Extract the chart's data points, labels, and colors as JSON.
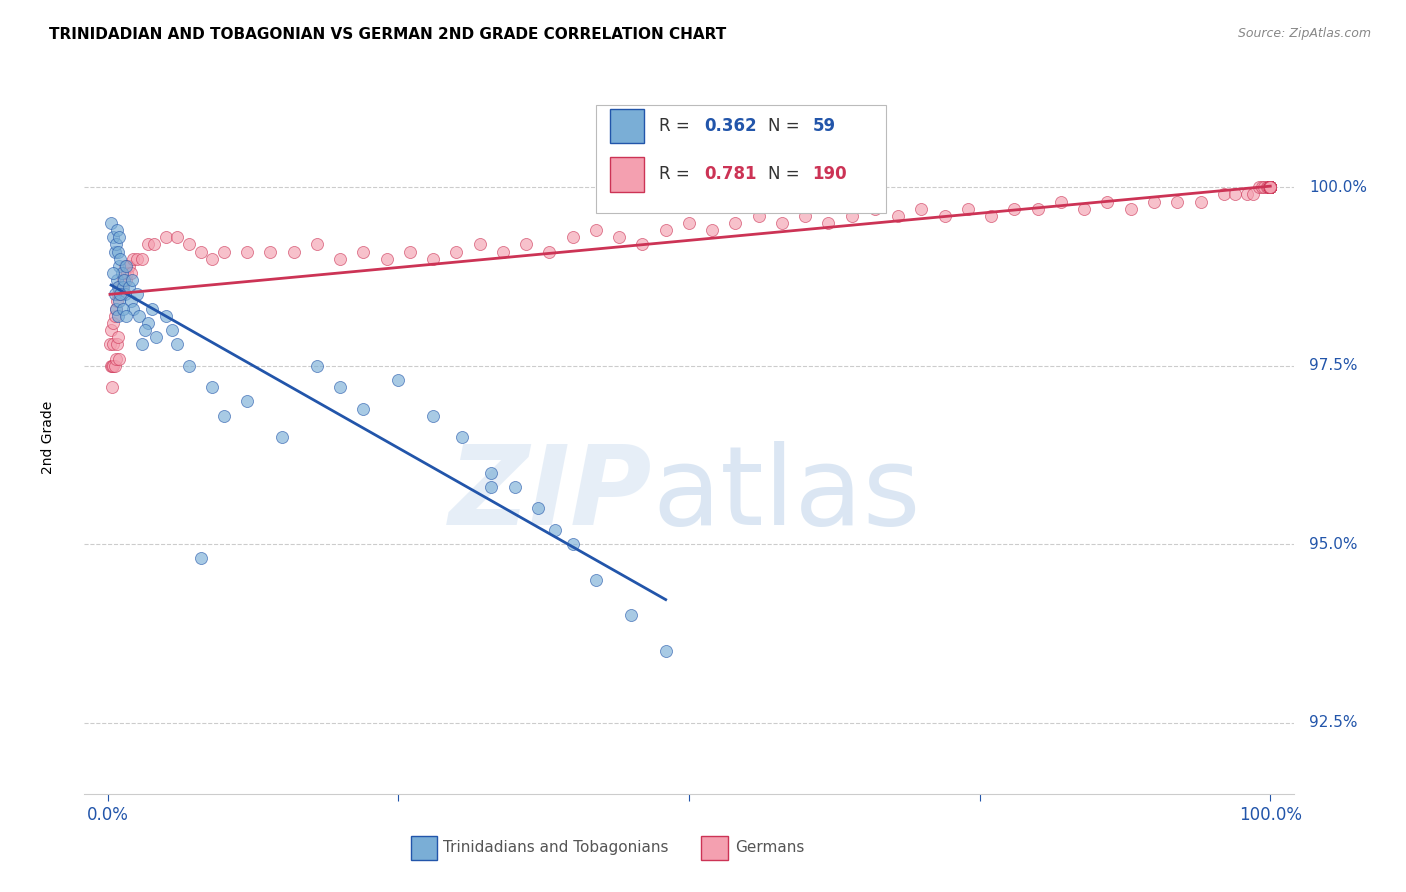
{
  "title": "TRINIDADIAN AND TOBAGONIAN VS GERMAN 2ND GRADE CORRELATION CHART",
  "source": "Source: ZipAtlas.com",
  "ylabel": "2nd Grade",
  "ytick_labels": [
    "100.0%",
    "97.5%",
    "95.0%",
    "92.5%"
  ],
  "ytick_values": [
    100.0,
    97.5,
    95.0,
    92.5
  ],
  "ymin": 91.5,
  "ymax": 101.5,
  "xmin": -2.0,
  "xmax": 102.0,
  "blue_color": "#7aaed6",
  "pink_color": "#f4a0b0",
  "blue_line_color": "#2255AA",
  "pink_line_color": "#cc3355",
  "blue_R": "0.362",
  "blue_N": "59",
  "pink_R": "0.781",
  "pink_N": "190",
  "trinidadian_label": "Trinidadians and Tobagonians",
  "german_label": "Germans",
  "blue_scatter_x": [
    0.3,
    0.5,
    0.6,
    0.7,
    0.8,
    0.8,
    0.9,
    0.9,
    1.0,
    1.0,
    1.1,
    1.2,
    1.3,
    1.4,
    1.5,
    1.6,
    1.8,
    2.0,
    2.2,
    2.5,
    2.7,
    3.0,
    3.5,
    4.2,
    5.0,
    6.0,
    7.0,
    8.0,
    9.0,
    10.0,
    12.0,
    15.0,
    18.0,
    20.0,
    22.0,
    25.0,
    28.0,
    30.5,
    33.0,
    35.0,
    37.0,
    38.5,
    40.0,
    42.0,
    45.0,
    48.0,
    0.5,
    0.6,
    0.7,
    0.9,
    1.0,
    1.1,
    1.3,
    1.6,
    2.1,
    3.2,
    3.8,
    5.5,
    33.0
  ],
  "blue_scatter_y": [
    99.5,
    99.3,
    99.1,
    99.2,
    99.4,
    98.7,
    99.1,
    98.6,
    99.3,
    98.9,
    99.0,
    98.8,
    98.6,
    98.7,
    98.5,
    98.9,
    98.6,
    98.4,
    98.3,
    98.5,
    98.2,
    97.8,
    98.1,
    97.9,
    98.2,
    97.8,
    97.5,
    94.8,
    97.2,
    96.8,
    97.0,
    96.5,
    97.5,
    97.2,
    96.9,
    97.3,
    96.8,
    96.5,
    96.0,
    95.8,
    95.5,
    95.2,
    95.0,
    94.5,
    94.0,
    93.5,
    98.8,
    98.5,
    98.3,
    98.2,
    98.4,
    98.5,
    98.3,
    98.2,
    98.7,
    98.0,
    98.3,
    98.0,
    95.8
  ],
  "pink_scatter_x": [
    0.2,
    0.3,
    0.3,
    0.4,
    0.4,
    0.5,
    0.5,
    0.5,
    0.6,
    0.6,
    0.7,
    0.7,
    0.8,
    0.8,
    0.9,
    0.9,
    1.0,
    1.0,
    1.1,
    1.2,
    1.3,
    1.4,
    1.5,
    1.6,
    1.7,
    1.8,
    2.0,
    2.2,
    2.5,
    3.0,
    3.5,
    4.0,
    5.0,
    6.0,
    7.0,
    8.0,
    9.0,
    10.0,
    12.0,
    14.0,
    16.0,
    18.0,
    20.0,
    22.0,
    24.0,
    26.0,
    28.0,
    30.0,
    32.0,
    34.0,
    36.0,
    38.0,
    40.0,
    42.0,
    44.0,
    46.0,
    48.0,
    50.0,
    52.0,
    54.0,
    56.0,
    58.0,
    60.0,
    62.0,
    64.0,
    66.0,
    68.0,
    70.0,
    72.0,
    74.0,
    76.0,
    78.0,
    80.0,
    82.0,
    84.0,
    86.0,
    88.0,
    90.0,
    92.0,
    94.0,
    96.0,
    97.0,
    98.0,
    98.5,
    99.0,
    99.3,
    99.5,
    99.7,
    99.8,
    99.9,
    99.95,
    99.97,
    99.98,
    99.99,
    100.0,
    100.0,
    100.0,
    100.0,
    100.0,
    100.0,
    100.0,
    100.0,
    100.0,
    100.0,
    100.0,
    100.0,
    100.0,
    100.0,
    100.0,
    100.0,
    100.0,
    100.0,
    100.0,
    100.0,
    100.0,
    100.0,
    100.0,
    100.0,
    100.0,
    100.0,
    100.0,
    100.0,
    100.0,
    100.0,
    100.0,
    100.0,
    100.0,
    100.0,
    100.0,
    100.0,
    100.0,
    100.0,
    100.0,
    100.0,
    100.0,
    100.0,
    100.0,
    100.0,
    100.0,
    100.0,
    100.0,
    100.0,
    100.0,
    100.0,
    100.0,
    100.0,
    100.0,
    100.0,
    100.0,
    100.0,
    100.0,
    100.0,
    100.0,
    100.0,
    100.0,
    100.0,
    100.0,
    100.0,
    100.0,
    100.0,
    100.0,
    100.0,
    100.0,
    100.0,
    100.0,
    100.0,
    100.0,
    100.0,
    100.0,
    100.0,
    100.0,
    100.0,
    100.0,
    100.0,
    100.0,
    100.0,
    100.0,
    100.0,
    100.0,
    100.0,
    100.0,
    100.0,
    100.0,
    100.0,
    100.0,
    100.0
  ],
  "pink_scatter_y": [
    97.8,
    97.5,
    98.0,
    97.5,
    97.2,
    98.1,
    97.8,
    97.5,
    98.2,
    97.5,
    98.3,
    97.6,
    98.4,
    97.8,
    98.5,
    97.9,
    98.6,
    97.6,
    98.5,
    98.6,
    98.7,
    98.8,
    98.9,
    98.7,
    98.8,
    98.9,
    98.8,
    99.0,
    99.0,
    99.0,
    99.2,
    99.2,
    99.3,
    99.3,
    99.2,
    99.1,
    99.0,
    99.1,
    99.1,
    99.1,
    99.1,
    99.2,
    99.0,
    99.1,
    99.0,
    99.1,
    99.0,
    99.1,
    99.2,
    99.1,
    99.2,
    99.1,
    99.3,
    99.4,
    99.3,
    99.2,
    99.4,
    99.5,
    99.4,
    99.5,
    99.6,
    99.5,
    99.6,
    99.5,
    99.6,
    99.7,
    99.6,
    99.7,
    99.6,
    99.7,
    99.6,
    99.7,
    99.7,
    99.8,
    99.7,
    99.8,
    99.7,
    99.8,
    99.8,
    99.8,
    99.9,
    99.9,
    99.9,
    99.9,
    100.0,
    100.0,
    100.0,
    100.0,
    100.0,
    100.0,
    100.0,
    100.0,
    100.0,
    100.0,
    100.0,
    100.0,
    100.0,
    100.0,
    100.0,
    100.0,
    100.0,
    100.0,
    100.0,
    100.0,
    100.0,
    100.0,
    100.0,
    100.0,
    100.0,
    100.0,
    100.0,
    100.0,
    100.0,
    100.0,
    100.0,
    100.0,
    100.0,
    100.0,
    100.0,
    100.0,
    100.0,
    100.0,
    100.0,
    100.0,
    100.0,
    100.0,
    100.0,
    100.0,
    100.0,
    100.0,
    100.0,
    100.0,
    100.0,
    100.0,
    100.0,
    100.0,
    100.0,
    100.0,
    100.0,
    100.0,
    100.0,
    100.0,
    100.0,
    100.0,
    100.0,
    100.0,
    100.0,
    100.0,
    100.0,
    100.0,
    100.0,
    100.0,
    100.0,
    100.0,
    100.0,
    100.0,
    100.0,
    100.0,
    100.0,
    100.0,
    100.0,
    100.0,
    100.0,
    100.0,
    100.0,
    100.0,
    100.0,
    100.0,
    100.0,
    100.0,
    100.0,
    100.0,
    100.0,
    100.0,
    100.0,
    100.0,
    100.0,
    100.0,
    100.0,
    100.0,
    100.0,
    100.0,
    100.0,
    100.0,
    100.0,
    100.0
  ]
}
